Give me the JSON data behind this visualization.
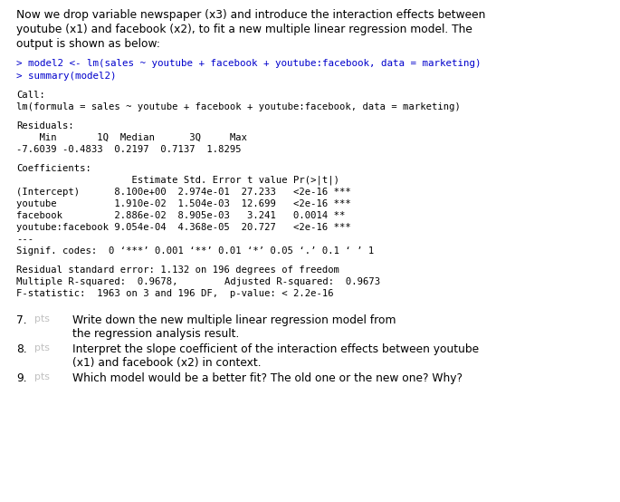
{
  "intro_line1": "Now we drop variable newspaper (x3) and introduce the interaction effects between",
  "intro_line2": "youtube (x1) and facebook (x2), to fit a new multiple linear regression model. The",
  "intro_line3": "output is shown as below:",
  "r_code_line1": "> model2 <- lm(sales ~ youtube + facebook + youtube:facebook, data = marketing)",
  "r_code_line2": "> summary(model2)",
  "call_label": "Call:",
  "call_formula": "lm(formula = sales ~ youtube + facebook + youtube:facebook, data = marketing)",
  "residuals_label": "Residuals:",
  "residuals_header": "    Min       1Q  Median      3Q     Max",
  "residuals_values": "-7.6039 -0.4833  0.2197  0.7137  1.8295",
  "coefficients_label": "Coefficients:",
  "coeff_header": "                    Estimate Std. Error t value Pr(>|t|)",
  "coeff_intercept": "(Intercept)      8.100e+00  2.974e-01  27.233   <2e-16 ***",
  "coeff_youtube": "youtube          1.910e-02  1.504e-03  12.699   <2e-16 ***",
  "coeff_facebook": "facebook         2.886e-02  8.905e-03   3.241   0.0014 **",
  "coeff_interaction": "youtube:facebook 9.054e-04  4.368e-05  20.727   <2e-16 ***",
  "dashes": "---",
  "signif_codes": "Signif. codes:  0 ‘***’ 0.001 ‘**’ 0.01 ‘*’ 0.05 ‘.’ 0.1 ‘ ’ 1",
  "residual_se": "Residual standard error: 1.132 on 196 degrees of freedom",
  "r_squared_1": "Multiple R-squared:  0.9678,",
  "r_squared_2": "Adjusted R-squared:  0.9673",
  "f_stat": "F-statistic:  1963 on 3 and 196 DF,  p-value: < 2.2e-16",
  "q7_num": "7.",
  "q7_tag": "pts",
  "q7_text1": "Write down the new multiple linear regression model from",
  "q7_text2": "the regression analysis result.",
  "q8_num": "8.",
  "q8_tag": "pts",
  "q8_text1": "Interpret the slope coefficient of the interaction effects between youtube",
  "q8_text2": "(x1) and facebook (x2) in context.",
  "q9_num": "9.",
  "q9_tag": "pts",
  "q9_text": "Which model would be a better fit? The old one or the new one? Why?",
  "bg_color": "#ffffff",
  "text_color": "#000000",
  "code_color": "#0000cc",
  "mono_color": "#000000",
  "tag_color": "#c0c0c0"
}
